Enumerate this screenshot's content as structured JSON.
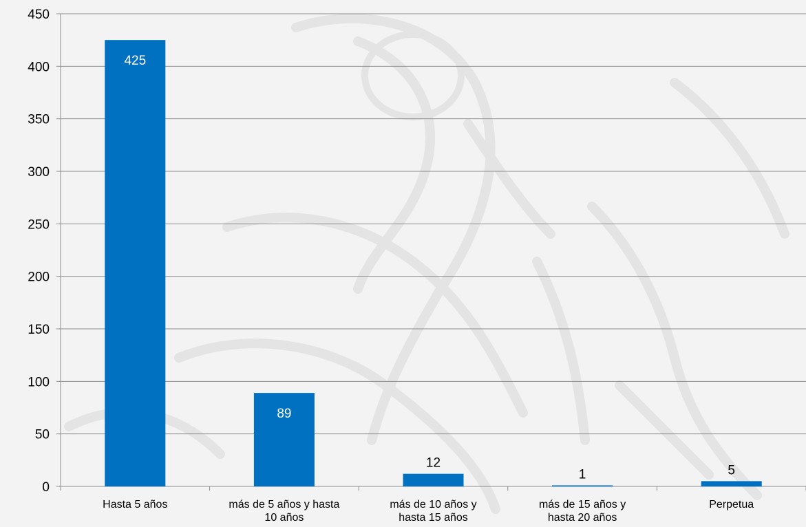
{
  "chart_data": {
    "type": "bar",
    "title": "",
    "xlabel": "",
    "ylabel": "",
    "categories": [
      [
        "Hasta 5 años"
      ],
      [
        "más de 5 años y hasta",
        "10 años"
      ],
      [
        "más de 10 años y",
        "hasta 15 años"
      ],
      [
        "más de 15 años y",
        "hasta 20 años"
      ],
      [
        "Perpetua"
      ]
    ],
    "values": [
      425,
      89,
      12,
      1,
      5
    ],
    "ylim": [
      0,
      450
    ],
    "yticks": [
      0,
      50,
      100,
      150,
      200,
      250,
      300,
      350,
      400,
      450
    ],
    "grid": true,
    "legend": "none",
    "colors": {
      "bar": "#0070c0",
      "grid": "#8c8c8c",
      "axis": "#8c8c8c",
      "label_inside": "#ffffff",
      "label_outside": "#000000",
      "background": "#f3f3f3",
      "watermark": "#e4e4e4"
    }
  }
}
